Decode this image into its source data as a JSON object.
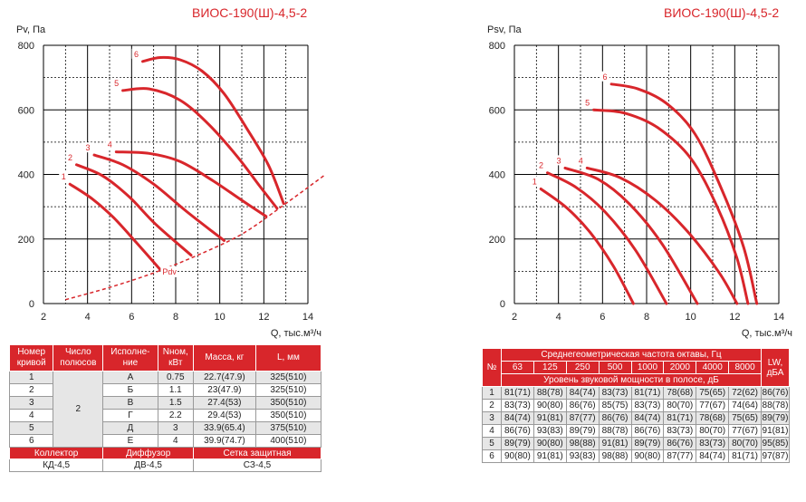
{
  "left": {
    "title": "ВИОС-190(Ш)-4,5-2",
    "ylabel": "Pv, Па",
    "xlabel": "Q, тыс.м³/ч",
    "pdv_label": "Pdv"
  },
  "right": {
    "title": "ВИОС-190(Ш)-4,5-2",
    "ylabel": "Psv, Па",
    "xlabel": "Q, тыс.м³/ч"
  },
  "chart_data": [
    {
      "type": "line",
      "title": "ВИОС-190(Ш)-4,5-2",
      "xlabel": "Q, тыс.м³/ч",
      "ylabel": "Pv, Па",
      "xlim": [
        2,
        14
      ],
      "ylim": [
        0,
        800
      ],
      "xticks": [
        2,
        4,
        6,
        8,
        10,
        12,
        14
      ],
      "yticks": [
        0,
        200,
        400,
        600,
        800
      ],
      "grid": true,
      "series": [
        {
          "name": "1",
          "points": [
            [
              3.2,
              370
            ],
            [
              4.2,
              325
            ],
            [
              5.2,
              265
            ],
            [
              6.2,
              190
            ],
            [
              7.3,
              105
            ]
          ]
        },
        {
          "name": "2",
          "points": [
            [
              3.5,
              430
            ],
            [
              4.7,
              395
            ],
            [
              5.9,
              330
            ],
            [
              7.1,
              245
            ],
            [
              8.7,
              150
            ]
          ]
        },
        {
          "name": "3",
          "points": [
            [
              4.3,
              460
            ],
            [
              5.6,
              430
            ],
            [
              7.0,
              370
            ],
            [
              8.5,
              285
            ],
            [
              10.2,
              195
            ]
          ]
        },
        {
          "name": "4",
          "points": [
            [
              5.3,
              470
            ],
            [
              6.8,
              465
            ],
            [
              8.2,
              440
            ],
            [
              9.7,
              380
            ],
            [
              11.0,
              320
            ],
            [
              12.1,
              270
            ]
          ]
        },
        {
          "name": "5",
          "points": [
            [
              5.6,
              660
            ],
            [
              6.8,
              665
            ],
            [
              8.2,
              630
            ],
            [
              9.5,
              555
            ],
            [
              10.8,
              455
            ],
            [
              11.8,
              365
            ],
            [
              12.6,
              295
            ]
          ]
        },
        {
          "name": "6",
          "points": [
            [
              6.5,
              750
            ],
            [
              7.3,
              762
            ],
            [
              8.2,
              755
            ],
            [
              9.2,
              720
            ],
            [
              10.2,
              650
            ],
            [
              11.2,
              545
            ],
            [
              12.2,
              430
            ],
            [
              12.9,
              310
            ]
          ]
        },
        {
          "name": "Pdv",
          "dashed": true,
          "points": [
            [
              3.0,
              12
            ],
            [
              5.0,
              50
            ],
            [
              7.0,
              95
            ],
            [
              9.0,
              150
            ],
            [
              11.0,
              215
            ],
            [
              12.8,
              300
            ],
            [
              14.8,
              400
            ]
          ]
        }
      ]
    },
    {
      "type": "line",
      "title": "ВИОС-190(Ш)-4,5-2",
      "xlabel": "Q, тыс.м³/ч",
      "ylabel": "Psv, Па",
      "xlim": [
        2,
        14
      ],
      "ylim": [
        0,
        800
      ],
      "xticks": [
        2,
        4,
        6,
        8,
        10,
        12,
        14
      ],
      "yticks": [
        0,
        200,
        400,
        600,
        800
      ],
      "grid": true,
      "series": [
        {
          "name": "1",
          "points": [
            [
              3.2,
              355
            ],
            [
              4.4,
              295
            ],
            [
              5.5,
              215
            ],
            [
              6.5,
              115
            ],
            [
              7.4,
              0
            ]
          ]
        },
        {
          "name": "2",
          "points": [
            [
              3.5,
              405
            ],
            [
              4.8,
              360
            ],
            [
              6.1,
              285
            ],
            [
              7.5,
              165
            ],
            [
              8.9,
              0
            ]
          ]
        },
        {
          "name": "3",
          "points": [
            [
              4.3,
              420
            ],
            [
              5.8,
              385
            ],
            [
              7.2,
              310
            ],
            [
              8.7,
              185
            ],
            [
              10.3,
              0
            ]
          ]
        },
        {
          "name": "4",
          "points": [
            [
              5.3,
              420
            ],
            [
              6.8,
              390
            ],
            [
              8.4,
              320
            ],
            [
              9.9,
              220
            ],
            [
              11.3,
              95
            ],
            [
              12.1,
              0
            ]
          ]
        },
        {
          "name": "5",
          "points": [
            [
              5.6,
              600
            ],
            [
              7.0,
              590
            ],
            [
              8.5,
              545
            ],
            [
              10.0,
              450
            ],
            [
              11.2,
              300
            ],
            [
              12.1,
              140
            ],
            [
              12.6,
              0
            ]
          ]
        },
        {
          "name": "6",
          "points": [
            [
              6.4,
              680
            ],
            [
              7.6,
              665
            ],
            [
              8.9,
              620
            ],
            [
              10.2,
              525
            ],
            [
              11.4,
              355
            ],
            [
              12.4,
              175
            ],
            [
              13.0,
              0
            ]
          ]
        }
      ]
    },
    {
      "type": "table",
      "headers": [
        "Номер кривой",
        "Число полюсов",
        "Исполне-ние",
        "Nном, кВт",
        "Масса, кг",
        "L, мм"
      ],
      "poles": "2",
      "rows": [
        [
          "1",
          "А",
          "0.75",
          "22.7(47.9)",
          "325(510)"
        ],
        [
          "2",
          "Б",
          "1.1",
          "23(47.9)",
          "325(510)"
        ],
        [
          "3",
          "В",
          "1.5",
          "27.4(53)",
          "350(510)"
        ],
        [
          "4",
          "Г",
          "2.2",
          "29.4(53)",
          "350(510)"
        ],
        [
          "5",
          "Д",
          "3",
          "33.9(65.4)",
          "375(510)"
        ],
        [
          "6",
          "Е",
          "4",
          "39.9(74.7)",
          "400(510)"
        ]
      ],
      "footer_headers": [
        "Коллектор",
        "Диффузор",
        "Сетка защитная"
      ],
      "footer_values": [
        "КД-4,5",
        "ДВ-4,5",
        "СЗ-4,5"
      ]
    },
    {
      "type": "table",
      "num_header": "№",
      "group_header": "Среднегеометрическая частота октавы, Гц",
      "freqs": [
        "63",
        "125",
        "250",
        "500",
        "1000",
        "2000",
        "4000",
        "8000"
      ],
      "sub_header": "Уровень звуковой мощности в полосе, дБ",
      "lw_header": "LW, дБА",
      "rows": [
        [
          "1",
          "81(71)",
          "88(78)",
          "84(74)",
          "83(73)",
          "81(71)",
          "78(68)",
          "75(65)",
          "72(62)",
          "86(76)"
        ],
        [
          "2",
          "83(73)",
          "90(80)",
          "86(76)",
          "85(75)",
          "83(73)",
          "80(70)",
          "77(67)",
          "74(64)",
          "88(78)"
        ],
        [
          "3",
          "84(74)",
          "91(81)",
          "87(77)",
          "86(76)",
          "84(74)",
          "81(71)",
          "78(68)",
          "75(65)",
          "89(79)"
        ],
        [
          "4",
          "86(76)",
          "93(83)",
          "89(79)",
          "88(78)",
          "86(76)",
          "83(73)",
          "80(70)",
          "77(67)",
          "91(81)"
        ],
        [
          "5",
          "89(79)",
          "90(80)",
          "98(88)",
          "91(81)",
          "89(79)",
          "86(76)",
          "83(73)",
          "80(70)",
          "95(85)"
        ],
        [
          "6",
          "90(80)",
          "91(81)",
          "93(83)",
          "98(88)",
          "90(80)",
          "87(77)",
          "84(74)",
          "81(71)",
          "97(87)"
        ]
      ]
    }
  ]
}
